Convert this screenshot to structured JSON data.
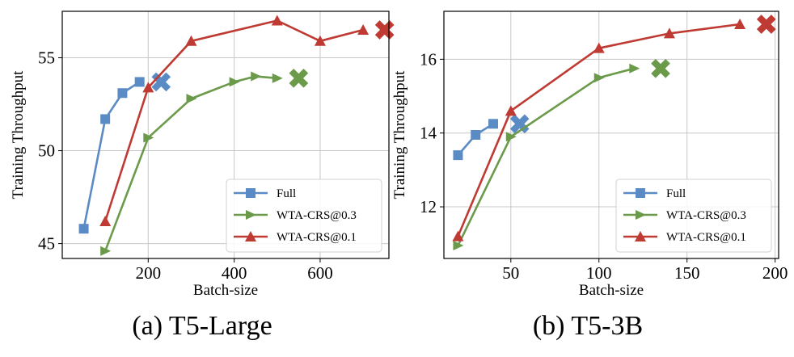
{
  "colors": {
    "full": "#5b8bc4",
    "wta03": "#6a9a4a",
    "wta01": "#bf3a33",
    "grid": "#c8c8c8"
  },
  "chart_data": [
    {
      "type": "line",
      "caption": "(a) T5-Large",
      "xlabel": "Batch-size",
      "ylabel": "Training Throughput",
      "xlim": [
        0,
        760
      ],
      "ylim": [
        44.2,
        57.5
      ],
      "xticks": [
        200,
        400,
        600
      ],
      "yticks": [
        45,
        50,
        55
      ],
      "grid": true,
      "legend_position": "lower-right",
      "series": [
        {
          "name": "Full",
          "marker": "square",
          "color_key": "full",
          "x": [
            50,
            100,
            140,
            180
          ],
          "y": [
            45.8,
            51.7,
            53.1,
            53.7
          ],
          "end": {
            "x": 230,
            "y": 53.7
          }
        },
        {
          "name": "WTA-CRS@0.3",
          "marker": "triangle-right",
          "color_key": "wta03",
          "x": [
            100,
            200,
            300,
            400,
            450,
            500
          ],
          "y": [
            44.6,
            50.7,
            52.8,
            53.7,
            54.0,
            53.9
          ],
          "end": {
            "x": 550,
            "y": 53.9
          }
        },
        {
          "name": "WTA-CRS@0.1",
          "marker": "triangle-up",
          "color_key": "wta01",
          "x": [
            100,
            200,
            300,
            500,
            600,
            700
          ],
          "y": [
            46.2,
            53.4,
            55.9,
            57.0,
            55.9,
            56.5
          ],
          "end": {
            "x": 750,
            "y": 56.5
          }
        }
      ]
    },
    {
      "type": "line",
      "caption": "(b) T5-3B",
      "xlabel": "Batch-size",
      "ylabel": "Training Throughput",
      "xlim": [
        12,
        202
      ],
      "ylim": [
        10.6,
        17.3
      ],
      "xticks": [
        50,
        100,
        150,
        200
      ],
      "yticks": [
        12,
        14,
        16
      ],
      "grid": true,
      "legend_position": "lower-right",
      "series": [
        {
          "name": "Full",
          "marker": "square",
          "color_key": "full",
          "x": [
            20,
            30,
            40
          ],
          "y": [
            13.4,
            13.95,
            14.25
          ],
          "end": {
            "x": 55,
            "y": 14.25
          }
        },
        {
          "name": "WTA-CRS@0.3",
          "marker": "triangle-right",
          "color_key": "wta03",
          "x": [
            20,
            50,
            100,
            120
          ],
          "y": [
            10.95,
            13.9,
            15.5,
            15.75
          ],
          "end": {
            "x": 135,
            "y": 15.75
          }
        },
        {
          "name": "WTA-CRS@0.1",
          "marker": "triangle-up",
          "color_key": "wta01",
          "x": [
            20,
            50,
            100,
            140,
            180
          ],
          "y": [
            11.2,
            14.6,
            16.3,
            16.7,
            16.95
          ],
          "end": {
            "x": 195,
            "y": 16.95
          }
        }
      ]
    }
  ]
}
